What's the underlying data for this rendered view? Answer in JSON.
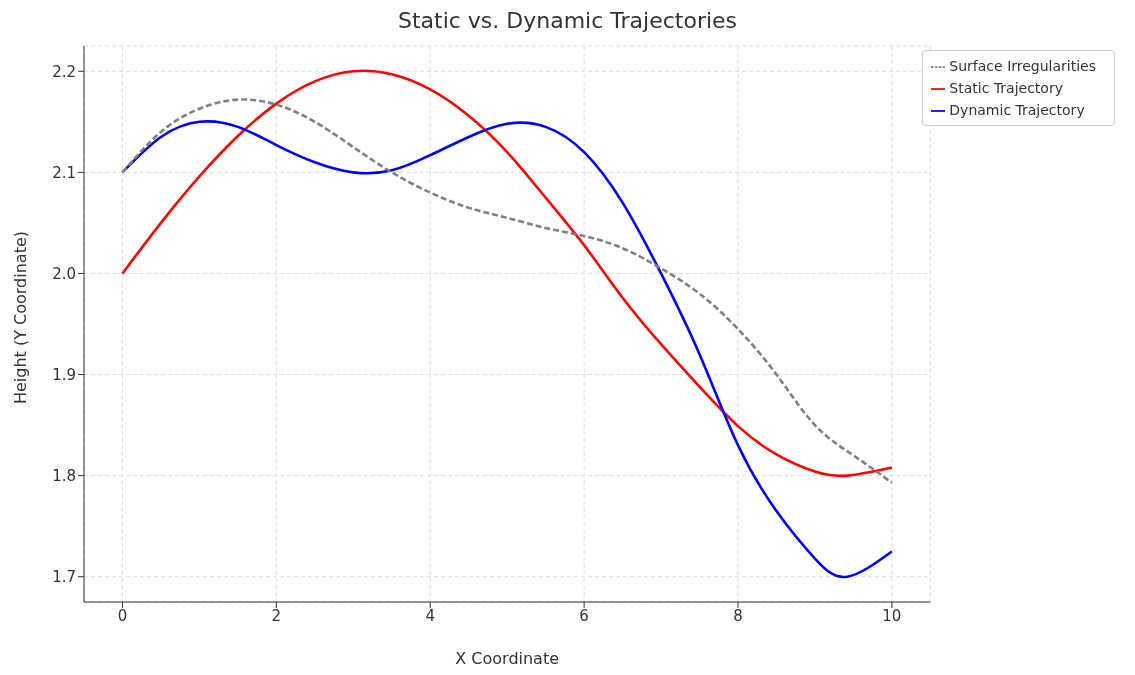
{
  "chart_data": {
    "type": "line",
    "title": "Static vs. Dynamic Trajectories",
    "xlabel": "X Coordinate",
    "ylabel": "Height (Y Coordinate)",
    "x": [
      0,
      0.5,
      1,
      1.5,
      2,
      2.5,
      3,
      3.5,
      4,
      4.5,
      5,
      5.5,
      6,
      6.5,
      7,
      7.5,
      8,
      8.5,
      9,
      9.5,
      10
    ],
    "series": [
      {
        "name": "Surface Irregularities",
        "color": "#808080",
        "line_style": "dashed",
        "values": [
          2.1,
          2.14,
          2.163,
          2.172,
          2.167,
          2.15,
          2.125,
          2.1,
          2.08,
          2.065,
          2.055,
          2.045,
          2.037,
          2.025,
          2.005,
          1.98,
          1.945,
          1.9,
          1.85,
          1.82,
          1.793
        ]
      },
      {
        "name": "Static Trajectory",
        "color": "#ff0000",
        "line_style": "solid",
        "x": [
          0,
          0.5,
          1,
          1.5,
          2,
          2.5,
          3,
          3.5,
          4,
          4.5,
          5,
          5.5,
          6,
          6.5,
          7,
          7.5,
          8,
          8.5,
          9,
          9.42,
          10
        ],
        "values": [
          2.0,
          2.05,
          2.096,
          2.136,
          2.168,
          2.19,
          2.2,
          2.197,
          2.182,
          2.156,
          2.12,
          2.075,
          2.028,
          1.976,
          1.93,
          1.888,
          1.849,
          1.821,
          1.804,
          1.8,
          1.808
        ]
      },
      {
        "name": "Dynamic Trajectory",
        "color": "#0000ff",
        "line_style": "solid",
        "x": [
          0,
          0.5,
          1,
          1.5,
          2,
          2.5,
          3,
          3.5,
          4,
          4.5,
          5,
          5.5,
          6,
          6.5,
          7,
          7.5,
          8,
          8.5,
          9,
          9.42,
          10
        ],
        "values": [
          2.1,
          2.135,
          2.15,
          2.145,
          2.127,
          2.11,
          2.1,
          2.102,
          2.117,
          2.135,
          2.148,
          2.145,
          2.12,
          2.07,
          2.0,
          1.92,
          1.83,
          1.765,
          1.718,
          1.7,
          1.725
        ]
      }
    ],
    "xlim": [
      -0.5,
      10.5
    ],
    "xticks": [
      0,
      2,
      4,
      6,
      8,
      10
    ],
    "ylim": [
      1.675,
      2.225
    ],
    "yticks": [
      1.7,
      1.8,
      1.9,
      {
        "value": 2,
        "label": "2.0"
      },
      2.1,
      2.2
    ],
    "grid": true,
    "legend": "top right"
  }
}
